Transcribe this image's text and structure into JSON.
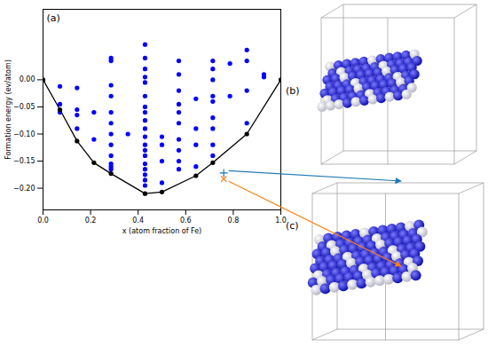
{
  "chart_data": {
    "type": "scatter",
    "x_label": "x (atom fraction of Fe)",
    "y_label": "Formation energy (ev/atom)",
    "annotations": [
      "(a)"
    ],
    "xlim": [
      0,
      1
    ],
    "ylim": [
      -0.24,
      0.13
    ],
    "xticks": [
      {
        "value": 0,
        "label": "0.0"
      },
      {
        "value": 0.2,
        "label": "0.2"
      },
      {
        "value": 0.4,
        "label": "0.4"
      },
      {
        "value": 0.6,
        "label": "0.6"
      },
      {
        "value": 0.8,
        "label": "0.8"
      },
      {
        "value": 1,
        "label": "1.0"
      }
    ],
    "yticks": [
      {
        "value": 0,
        "label": "0.00"
      },
      {
        "value": -0.05,
        "label": "−0.05"
      },
      {
        "value": -0.1,
        "label": "−0.10"
      },
      {
        "value": -0.15,
        "label": "−0.15"
      },
      {
        "value": -0.2,
        "label": "−0.20"
      }
    ],
    "grid": false,
    "series": [
      {
        "type": "scatter",
        "marker": "circle",
        "color": "#0000ff",
        "x": [
          0.071,
          0.071,
          0.071,
          0.143,
          0.143,
          0.143,
          0.143,
          0.214,
          0.214,
          0.286,
          0.286,
          0.286,
          0.286,
          0.286,
          0.286,
          0.286,
          0.286,
          0.286,
          0.286,
          0.286,
          0.286,
          0.357,
          0.429,
          0.429,
          0.429,
          0.429,
          0.429,
          0.429,
          0.429,
          0.429,
          0.429,
          0.429,
          0.429,
          0.429,
          0.429,
          0.429,
          0.429,
          0.429,
          0.429,
          0.429,
          0.429,
          0.5,
          0.5,
          0.5,
          0.5,
          0.571,
          0.571,
          0.571,
          0.571,
          0.571,
          0.571,
          0.571,
          0.571,
          0.571,
          0.571,
          0.643,
          0.643,
          0.643,
          0.643,
          0.714,
          0.714,
          0.714,
          0.714,
          0.714,
          0.714,
          0.714,
          0.714,
          0.714,
          0.786,
          0.786,
          0.857,
          0.857,
          0.857,
          0.857,
          0.929,
          0.929
        ],
        "values": [
          -0.012,
          -0.045,
          -0.06,
          -0.015,
          -0.055,
          -0.065,
          -0.09,
          -0.11,
          -0.06,
          0.04,
          0.035,
          -0.01,
          -0.03,
          -0.06,
          -0.08,
          -0.1,
          -0.12,
          -0.14,
          -0.155,
          -0.16,
          -0.165,
          -0.1,
          0.065,
          0.04,
          0.02,
          0.005,
          -0.005,
          -0.03,
          -0.05,
          -0.06,
          -0.075,
          -0.09,
          -0.105,
          -0.12,
          -0.13,
          -0.14,
          -0.155,
          -0.165,
          -0.175,
          -0.185,
          -0.195,
          -0.105,
          -0.12,
          -0.15,
          -0.19,
          0.035,
          0.01,
          -0.02,
          -0.045,
          -0.06,
          -0.08,
          -0.11,
          -0.13,
          -0.15,
          -0.165,
          -0.035,
          -0.09,
          -0.12,
          -0.16,
          0.035,
          0.02,
          0.0,
          -0.03,
          -0.04,
          -0.07,
          -0.09,
          -0.12,
          -0.14,
          0.03,
          -0.03,
          0.055,
          0.035,
          -0.02,
          -0.08,
          0.01,
          0.005
        ]
      },
      {
        "type": "line",
        "marker": "circle",
        "color": "#000000",
        "x": [
          0,
          0.071,
          0.143,
          0.214,
          0.286,
          0.429,
          0.5,
          0.643,
          0.714,
          0.857,
          1
        ],
        "values": [
          0,
          -0.055,
          -0.113,
          -0.153,
          -0.173,
          -0.21,
          -0.207,
          -0.177,
          -0.153,
          -0.1,
          0
        ]
      },
      {
        "type": "scatter",
        "marker": "plus",
        "color": "#1f77b4",
        "x": [
          0.76
        ],
        "values": [
          -0.172
        ]
      },
      {
        "type": "scatter",
        "marker": "x",
        "color": "#ff7f0e",
        "x": [
          0.76
        ],
        "values": [
          -0.183
        ]
      }
    ]
  },
  "panels": [
    {
      "label": "(b)"
    },
    {
      "label": "(c)"
    }
  ]
}
